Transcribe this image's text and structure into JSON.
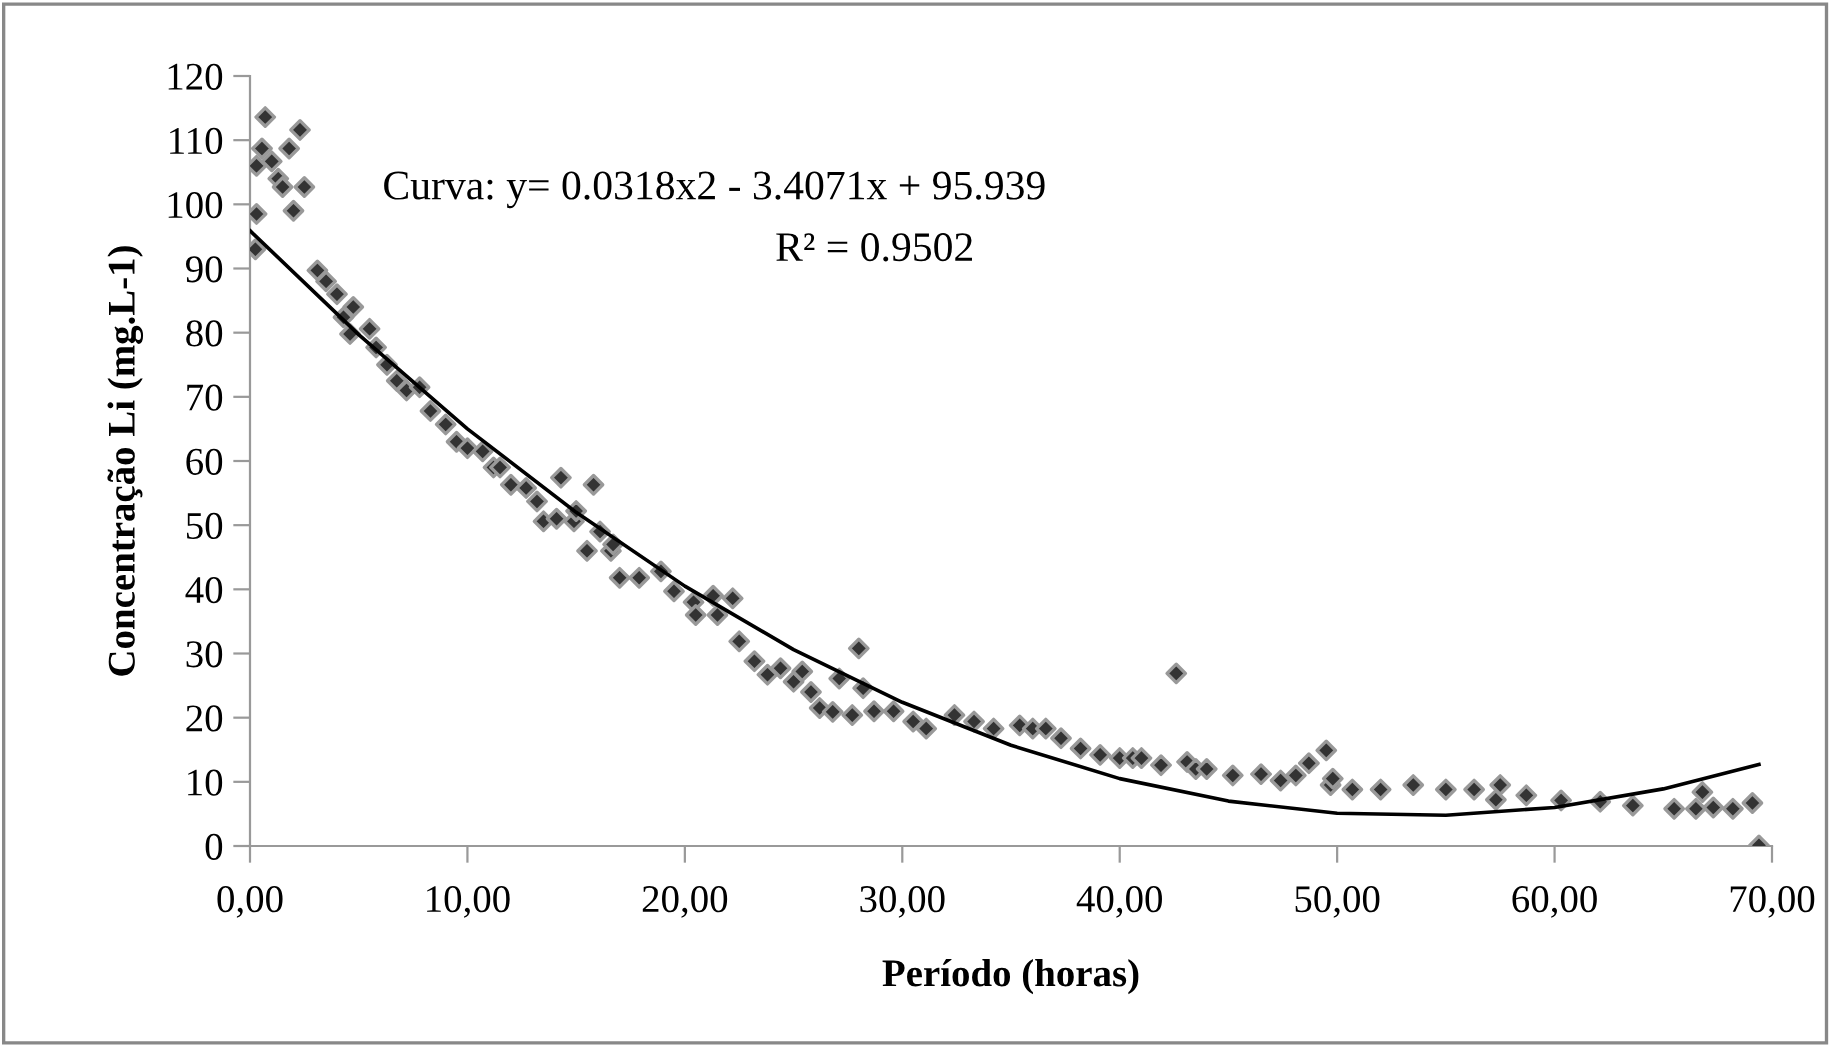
{
  "chart_data": {
    "type": "scatter",
    "xlabel": "Período (horas)",
    "ylabel": "Concentração Li (mg.L-1)",
    "annotations": [
      "Curva: y= 0.0318x2 - 3.4071x + 95.939",
      "R² = 0.9502"
    ],
    "xlim": [
      0,
      70
    ],
    "xticks": [
      {
        "value": 0,
        "label": "0,00"
      },
      {
        "value": 10,
        "label": "10,00"
      },
      {
        "value": 20,
        "label": "20,00"
      },
      {
        "value": 30,
        "label": "30,00"
      },
      {
        "value": 40,
        "label": "40,00"
      },
      {
        "value": 50,
        "label": "50,00"
      },
      {
        "value": 60,
        "label": "60,00"
      },
      {
        "value": 70,
        "label": "70,00"
      }
    ],
    "ylim": [
      0,
      120
    ],
    "yticks": [
      0,
      10,
      20,
      30,
      40,
      50,
      60,
      70,
      80,
      90,
      100,
      110,
      120
    ],
    "grid": false,
    "legend": false,
    "marker": "diamond",
    "series": [
      {
        "color": "#333333",
        "x": [
          0.25,
          0.3,
          0.3,
          0.55,
          0.7,
          1.0,
          1.3,
          1.5,
          1.8,
          2.0,
          2.3,
          2.5,
          3.1,
          3.5,
          4.0,
          4.75,
          4.3,
          4.6,
          5.5,
          5.8,
          6.3,
          6.75,
          7.2,
          7.8,
          8.3,
          9.0,
          9.5,
          10.0,
          10.7,
          11.2,
          11.5,
          12.0,
          12.7,
          13.2,
          13.5,
          14.1,
          14.3,
          14.9,
          15.0,
          15.5,
          15.8,
          16.1,
          16.6,
          16.7,
          17.0,
          17.9,
          18.9,
          19.5,
          20.4,
          20.5,
          21.3,
          21.5,
          22.2,
          22.5,
          23.2,
          23.8,
          24.4,
          25.0,
          25.4,
          25.8,
          26.2,
          26.8,
          27.1,
          27.7,
          28.0,
          28.2,
          28.7,
          29.6,
          30.5,
          31.1,
          32.4,
          33.3,
          34.2,
          35.4,
          36.0,
          36.6,
          37.3,
          38.2,
          39.1,
          40.0,
          40.6,
          41.0,
          41.9,
          42.6,
          43.1,
          43.5,
          44.0,
          45.2,
          46.5,
          47.4,
          48.1,
          48.7,
          49.5,
          49.7,
          49.8,
          50.7,
          52.0,
          53.5,
          55.0,
          56.3,
          57.3,
          57.5,
          58.7,
          60.3,
          62.1,
          63.6,
          65.5,
          66.5,
          66.8,
          67.3,
          68.2,
          69.1,
          69.4
        ],
        "values": [
          93,
          98.5,
          106,
          108.7,
          113.6,
          106.7,
          104,
          102.7,
          108.7,
          99,
          111.6,
          102.7,
          89.7,
          88,
          86,
          84,
          82.4,
          79.8,
          80.6,
          77.7,
          75,
          72.5,
          71,
          71.5,
          67.8,
          65.7,
          63,
          62,
          61.5,
          59,
          59,
          56.3,
          55.8,
          53.7,
          50.6,
          51,
          57.4,
          50.6,
          52.2,
          46,
          56.3,
          49,
          46,
          47,
          41.8,
          41.8,
          42.8,
          39.7,
          38,
          36,
          39,
          36,
          38.6,
          31.9,
          28.8,
          26.7,
          27.7,
          25.6,
          27.2,
          24,
          21.5,
          20.9,
          26.1,
          20.4,
          30.8,
          24.6,
          21,
          21,
          19.4,
          18.3,
          20.4,
          19.4,
          18.3,
          18.8,
          18.3,
          18.3,
          16.8,
          15.2,
          14.2,
          13.7,
          13.7,
          13.7,
          12.6,
          26.9,
          13.1,
          12,
          12,
          11,
          11.2,
          10.2,
          11,
          12.9,
          14.9,
          9.5,
          10.5,
          8.8,
          8.8,
          9.5,
          8.8,
          8.8,
          7.2,
          9.5,
          7.9,
          7.1,
          6.9,
          6.3,
          5.8,
          5.8,
          8.4,
          6,
          5.8,
          6.7,
          0.1
        ]
      },
      {
        "type": "line",
        "color": "#000000",
        "line_style": "solid",
        "marker": "none",
        "x": [
          0,
          5,
          10,
          15,
          20,
          25,
          30,
          35,
          40,
          45,
          50,
          55,
          60,
          65,
          69.4
        ],
        "values": [
          95.9,
          79.7,
          65.0,
          52.0,
          40.5,
          30.6,
          22.4,
          15.7,
          10.5,
          7.0,
          5.1,
          4.8,
          6.0,
          8.9,
          12.7
        ]
      }
    ]
  }
}
